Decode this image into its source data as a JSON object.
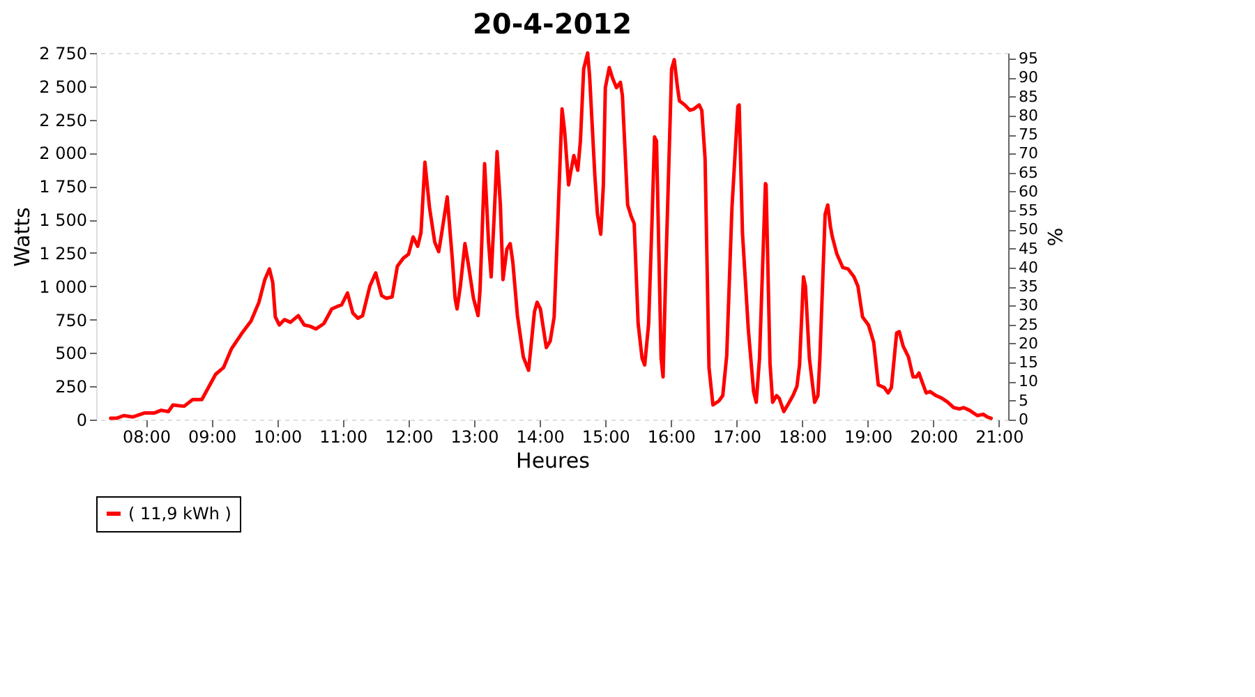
{
  "chart_data": {
    "type": "line",
    "title": "20-4-2012",
    "xlabel": "Heures",
    "ylabel": "Watts",
    "y2label": "%",
    "xlim": [
      7.24,
      21.14
    ],
    "xticks": [
      {
        "value": 8,
        "label": "08:00"
      },
      {
        "value": 9,
        "label": "09:00"
      },
      {
        "value": 10,
        "label": "10:00"
      },
      {
        "value": 11,
        "label": "11:00"
      },
      {
        "value": 12,
        "label": "12:00"
      },
      {
        "value": 13,
        "label": "13:00"
      },
      {
        "value": 14,
        "label": "14:00"
      },
      {
        "value": 15,
        "label": "15:00"
      },
      {
        "value": 16,
        "label": "16:00"
      },
      {
        "value": 17,
        "label": "17:00"
      },
      {
        "value": 18,
        "label": "18:00"
      },
      {
        "value": 19,
        "label": "19:00"
      },
      {
        "value": 20,
        "label": "20:00"
      },
      {
        "value": 21,
        "label": "21:00"
      }
    ],
    "ylim": [
      0,
      2750
    ],
    "yticks": [
      0,
      250,
      500,
      750,
      {
        "value": 1000,
        "label": "1 000"
      },
      {
        "value": 1250,
        "label": "1 250"
      },
      {
        "value": 1500,
        "label": "1 500"
      },
      {
        "value": 1750,
        "label": "1 750"
      },
      {
        "value": 2000,
        "label": "2 000"
      },
      {
        "value": 2250,
        "label": "2 250"
      },
      {
        "value": 2500,
        "label": "2 500"
      },
      {
        "value": 2750,
        "label": "2 750"
      }
    ],
    "y2lim": [
      0,
      96.5
    ],
    "y2ticks": [
      0,
      5,
      10,
      15,
      20,
      25,
      30,
      35,
      40,
      45,
      50,
      55,
      60,
      65,
      70,
      75,
      80,
      85,
      90,
      95
    ],
    "grid": true,
    "legend": "bottom",
    "marker": "none",
    "line_style": "solid",
    "series": [
      {
        "name": "( 11,9 kWh )",
        "color": "#ff0000",
        "x": [
          7.46,
          7.55,
          7.66,
          7.8,
          7.98,
          8.13,
          8.23,
          8.34,
          8.41,
          8.58,
          8.71,
          8.85,
          9.06,
          9.18,
          9.3,
          9.45,
          9.6,
          9.72,
          9.81,
          9.88,
          9.93,
          9.97,
          10.03,
          10.11,
          10.2,
          10.32,
          10.41,
          10.5,
          10.59,
          10.71,
          10.83,
          10.92,
          10.98,
          11.07,
          11.15,
          11.23,
          11.3,
          11.41,
          11.5,
          11.59,
          11.66,
          11.75,
          11.83,
          11.92,
          12.0,
          12.07,
          12.14,
          12.19,
          12.25,
          12.32,
          12.4,
          12.46,
          12.5,
          12.59,
          12.67,
          12.71,
          12.74,
          12.79,
          12.86,
          12.91,
          12.99,
          13.06,
          13.09,
          13.16,
          13.22,
          13.26,
          13.31,
          13.35,
          13.4,
          13.44,
          13.5,
          13.55,
          13.59,
          13.66,
          13.75,
          13.83,
          13.92,
          13.96,
          14.01,
          14.1,
          14.16,
          14.22,
          14.26,
          14.34,
          14.38,
          14.44,
          14.47,
          14.52,
          14.58,
          14.62,
          14.67,
          14.73,
          14.76,
          14.84,
          14.88,
          14.93,
          14.97,
          15.0,
          15.06,
          15.11,
          15.17,
          15.23,
          15.26,
          15.34,
          15.39,
          15.44,
          15.5,
          15.56,
          15.6,
          15.66,
          15.71,
          15.75,
          15.78,
          15.85,
          15.88,
          15.92,
          16.01,
          16.05,
          16.1,
          16.13,
          16.21,
          16.29,
          16.35,
          16.43,
          16.47,
          16.52,
          16.58,
          16.64,
          16.73,
          16.79,
          16.85,
          16.93,
          17.02,
          17.04,
          17.09,
          17.18,
          17.26,
          17.3,
          17.35,
          17.44,
          17.45,
          17.51,
          17.55,
          17.61,
          17.65,
          17.72,
          17.78,
          17.86,
          17.92,
          17.96,
          18.02,
          18.05,
          18.11,
          18.19,
          18.24,
          18.27,
          18.35,
          18.39,
          18.43,
          18.46,
          18.53,
          18.62,
          18.7,
          18.79,
          18.85,
          18.92,
          19.01,
          19.09,
          19.16,
          19.25,
          19.31,
          19.36,
          19.44,
          19.48,
          19.54,
          19.62,
          19.69,
          19.74,
          19.78,
          19.83,
          19.89,
          19.95,
          20.04,
          20.13,
          20.22,
          20.31,
          20.4,
          20.46,
          20.55,
          20.67,
          20.76,
          20.82,
          20.88
        ],
        "values": [
          10,
          10,
          30,
          20,
          50,
          50,
          70,
          60,
          110,
          100,
          150,
          150,
          340,
          390,
          530,
          640,
          740,
          880,
          1050,
          1130,
          1030,
          770,
          710,
          750,
          730,
          780,
          710,
          700,
          680,
          720,
          830,
          850,
          860,
          950,
          800,
          760,
          780,
          1000,
          1100,
          930,
          910,
          920,
          1150,
          1210,
          1240,
          1370,
          1300,
          1400,
          1930,
          1590,
          1330,
          1260,
          1380,
          1670,
          1190,
          910,
          830,
          1000,
          1320,
          1170,
          910,
          780,
          970,
          1920,
          1330,
          1070,
          1570,
          2010,
          1610,
          1050,
          1280,
          1320,
          1180,
          780,
          470,
          370,
          810,
          880,
          830,
          540,
          590,
          770,
          1280,
          2330,
          2160,
          1760,
          1850,
          1980,
          1870,
          2090,
          2630,
          2750,
          2580,
          1830,
          1540,
          1390,
          1760,
          2490,
          2640,
          2560,
          2490,
          2530,
          2430,
          1610,
          1530,
          1470,
          720,
          460,
          410,
          720,
          1470,
          2120,
          2090,
          460,
          320,
          1100,
          2630,
          2700,
          2490,
          2390,
          2360,
          2320,
          2330,
          2360,
          2320,
          1960,
          390,
          110,
          140,
          180,
          480,
          1590,
          2350,
          2360,
          1400,
          670,
          210,
          130,
          460,
          1770,
          1760,
          420,
          130,
          180,
          160,
          60,
          110,
          180,
          250,
          410,
          1070,
          1000,
          460,
          130,
          180,
          460,
          1540,
          1610,
          1450,
          1370,
          1240,
          1140,
          1130,
          1070,
          1000,
          770,
          710,
          580,
          260,
          240,
          200,
          240,
          650,
          660,
          550,
          470,
          320,
          320,
          350,
          280,
          200,
          210,
          180,
          160,
          130,
          90,
          80,
          90,
          70,
          30,
          40,
          20,
          10
        ]
      }
    ]
  }
}
